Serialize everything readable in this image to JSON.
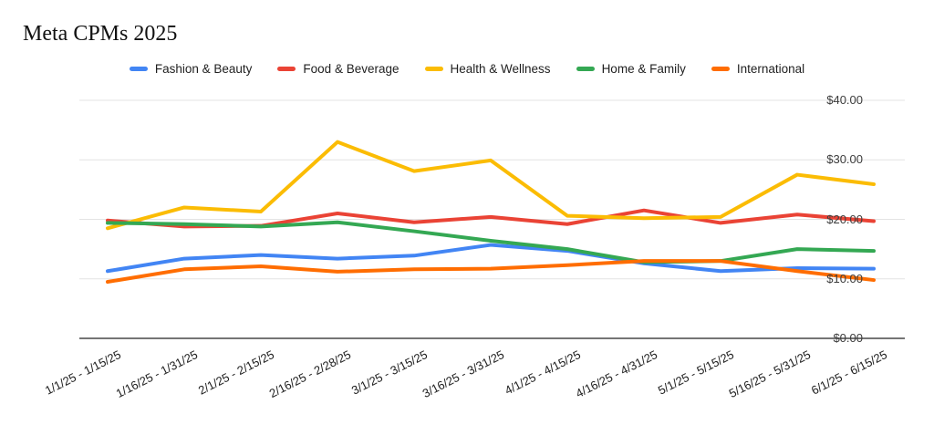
{
  "title": "Meta CPMs 2025",
  "chart_data": {
    "type": "line",
    "title": "Meta CPMs 2025",
    "xlabel": "",
    "ylabel": "",
    "ylim": [
      0,
      40
    ],
    "grid": true,
    "legend_position": "top",
    "y_ticks": [
      {
        "label": "$40.00",
        "value": 40
      },
      {
        "label": "$30.00",
        "value": 30
      },
      {
        "label": "$20.00",
        "value": 20
      },
      {
        "label": "$10.00",
        "value": 10
      },
      {
        "label": "$0.00",
        "value": 0
      }
    ],
    "categories": [
      "1/1/25 - 1/15/25",
      "1/16/25 - 1/31/25",
      "2/1/25 - 2/15/25",
      "2/16/25 - 2/28/25",
      "3/1/25 - 3/15/25",
      "3/16/25 - 3/31/25",
      "4/1/25 - 4/15/25",
      "4/16/25 - 4/31/25",
      "5/1/25 - 5/15/25",
      "5/16/25 - 5/31/25",
      "6/1/25 - 6/15/25"
    ],
    "series": [
      {
        "name": "Fashion & Beauty",
        "color": "#4285F4",
        "values": [
          11.3,
          13.4,
          14.0,
          13.4,
          13.9,
          15.7,
          14.7,
          12.6,
          11.3,
          11.8,
          11.7
        ]
      },
      {
        "name": "Food & Beverage",
        "color": "#EA4335",
        "values": [
          19.8,
          18.8,
          18.9,
          21.0,
          19.5,
          20.4,
          19.2,
          21.5,
          19.4,
          20.8,
          19.7
        ]
      },
      {
        "name": "Health & Wellness",
        "color": "#FBBC04",
        "values": [
          18.5,
          22.0,
          21.3,
          33.0,
          28.1,
          29.9,
          20.6,
          20.2,
          20.4,
          27.5,
          25.9
        ]
      },
      {
        "name": "Home & Family",
        "color": "#34A853",
        "values": [
          19.4,
          19.2,
          18.8,
          19.5,
          18.0,
          16.4,
          15.0,
          12.8,
          13.0,
          15.0,
          14.7
        ]
      },
      {
        "name": "International",
        "color": "#FF6D01",
        "values": [
          9.5,
          11.6,
          12.1,
          11.2,
          11.6,
          11.7,
          12.3,
          13.0,
          13.0,
          11.3,
          9.8
        ]
      }
    ]
  },
  "colors": {
    "background": "#ffffff",
    "gridline": "#e3e3e3",
    "axis_line": "#757575",
    "y_label": "#3c3c3c",
    "x_label": "#202020",
    "legend_text": "#1f1f1f",
    "title_text": "#111111"
  }
}
